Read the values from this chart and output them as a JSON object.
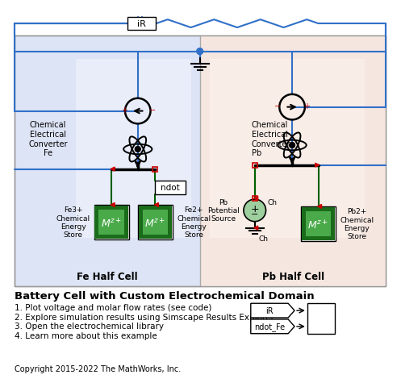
{
  "title": "Battery Cell with Custom Electrochemical Domain",
  "bullet1": "1. Plot voltage and molar flow rates (see code)",
  "bullet2": "2. Explore simulation results using Simscape Results Explorer",
  "bullet3": "3. Open the electrochemical library",
  "bullet4": "4. Learn more about this example",
  "copyright": "Copyright 2015-2022 The MathWorks, Inc.",
  "fe_label": "Fe Half Cell",
  "pb_label": "Pb Half Cell",
  "cec_fe": "Chemical\nElectrical\nConverter\nFe",
  "cec_pb": "Chemical\nElectrical\nConverter\nPb",
  "fe3_label": "Fe3+\nChemical\nEnergy\nStore",
  "fe2_label": "Fe2+\nChemical\nEnergy\nStore",
  "pb2_label": "Pb2+\nChemical\nEnergy\nStore",
  "pb_pot": "Pb\nPotential\nSource",
  "ndot_label": "ndot",
  "ir_label": "iR",
  "bg_fe": "#dde4f5",
  "bg_pb": "#f5e6e0",
  "bg_inner_fe": "#eaeffa",
  "bg_inner_pb": "#faeee8",
  "blue_line": "#3070c8",
  "green_line": "#006000",
  "red_mark": "#cc0000",
  "figsize": [
    4.84,
    4.62
  ],
  "dpi": 100
}
